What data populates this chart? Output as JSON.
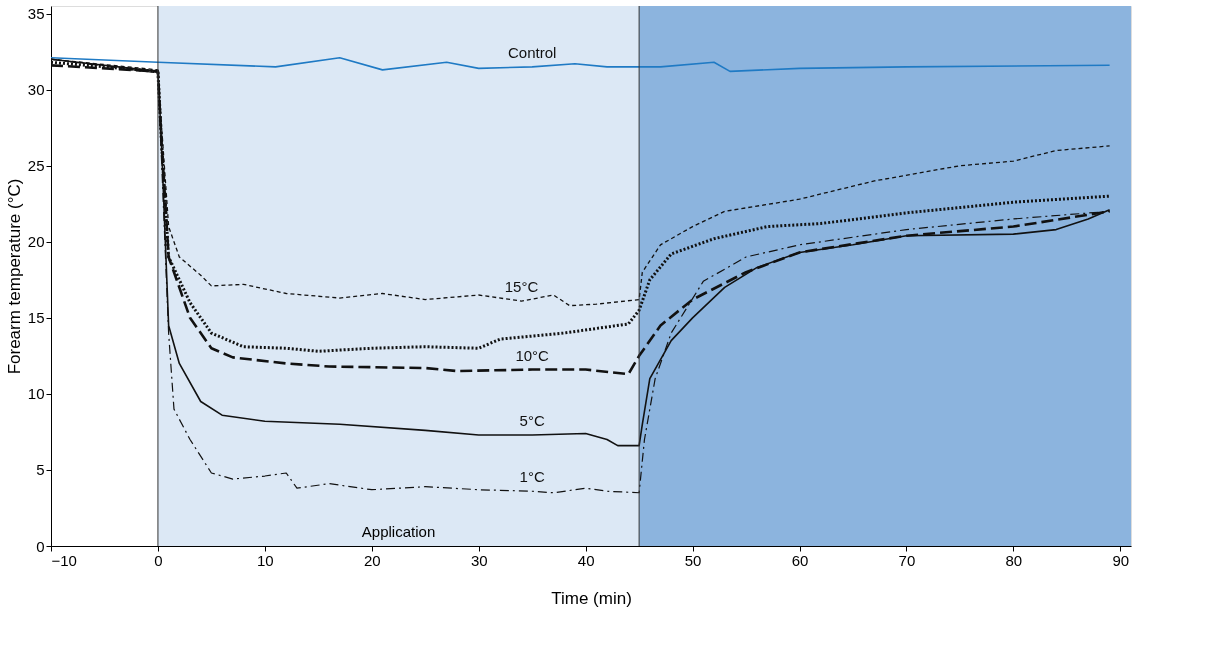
{
  "chart_data": {
    "type": "line",
    "xlabel": "Time (min)",
    "ylabel": "Forearm temperature (°C)",
    "xlim": [
      -10,
      91
    ],
    "xticks": [
      -10,
      0,
      10,
      20,
      30,
      40,
      50,
      60,
      70,
      80,
      90
    ],
    "ylim": [
      0,
      35.5
    ],
    "yticks": [
      0,
      5,
      10,
      15,
      20,
      25,
      30,
      35
    ],
    "grid": false,
    "ref_lines": [
      {
        "axis": "x",
        "value": 0,
        "color": "#333333"
      },
      {
        "axis": "x",
        "value": 45,
        "color": "#333333"
      }
    ],
    "bands": [
      {
        "axis": "x",
        "from": 0,
        "to": 45,
        "label": "Application",
        "color": "#dce8f5"
      },
      {
        "axis": "x",
        "from": 45,
        "to": 91,
        "color": "#8cb4de"
      }
    ],
    "series": [
      {
        "name": "Control",
        "color": "#1f7ac4",
        "line_style": "solid",
        "x": [
          -10,
          0,
          11,
          17,
          21,
          27,
          30,
          35,
          39,
          42,
          47,
          52,
          53.5,
          60,
          70,
          89
        ],
        "values": [
          32.1,
          31.8,
          31.5,
          32.1,
          31.3,
          31.8,
          31.4,
          31.5,
          31.7,
          31.5,
          31.5,
          31.8,
          31.2,
          31.4,
          31.5,
          31.6
        ]
      },
      {
        "name": "15°C",
        "color": "#111111",
        "line_style": "dashed",
        "x": [
          -10,
          0,
          0.3,
          1,
          2,
          4,
          5,
          8,
          12,
          17,
          21,
          25,
          30,
          34,
          37,
          38.5,
          41,
          45,
          45.3,
          47,
          50,
          53,
          60,
          67,
          75,
          80,
          84,
          89
        ],
        "values": [
          32,
          31.3,
          28,
          21,
          19,
          17.8,
          17.1,
          17.2,
          16.6,
          16.3,
          16.6,
          16.2,
          16.5,
          16.1,
          16.5,
          15.8,
          15.9,
          16.2,
          18,
          19.8,
          21,
          22,
          22.8,
          24,
          25,
          25.3,
          26,
          26.3
        ]
      },
      {
        "color": "#111111",
        "line_style": "dotted",
        "x": [
          -10,
          0,
          0.3,
          1,
          3,
          5,
          8,
          12,
          15,
          20,
          25,
          30,
          32,
          38,
          44,
          45,
          46,
          48,
          52,
          57,
          62,
          70,
          80,
          89
        ],
        "values": [
          31.8,
          31.2,
          27,
          19,
          16,
          14,
          13.1,
          13,
          12.8,
          13,
          13.1,
          13,
          13.6,
          14,
          14.6,
          15.5,
          17.5,
          19.2,
          20.2,
          21,
          21.2,
          21.9,
          22.6,
          23
        ]
      },
      {
        "name": "10°C",
        "color": "#111111",
        "line_style": "longdash",
        "x": [
          -10,
          0,
          0.3,
          1,
          3,
          5,
          7,
          12,
          16,
          25,
          28,
          35,
          40,
          44,
          45,
          47,
          50,
          55,
          60,
          70,
          80,
          89
        ],
        "values": [
          31.6,
          31.2,
          27,
          19,
          15,
          13,
          12.4,
          12,
          11.8,
          11.7,
          11.5,
          11.6,
          11.6,
          11.3,
          12.5,
          14.5,
          16.2,
          18,
          19.3,
          20.4,
          21,
          22
        ]
      },
      {
        "name": "5°C",
        "color": "#111111",
        "line_style": "solid",
        "x": [
          -10,
          0,
          0.3,
          1,
          2,
          4,
          6,
          10,
          17,
          25,
          30,
          35,
          40,
          42,
          43,
          45,
          45.3,
          46,
          48,
          50,
          53,
          56,
          60,
          65,
          70,
          80,
          84,
          87,
          89
        ],
        "values": [
          32,
          31.2,
          27,
          14.5,
          12,
          9.5,
          8.6,
          8.2,
          8,
          7.6,
          7.3,
          7.3,
          7.4,
          7,
          6.6,
          6.6,
          8,
          11,
          13.5,
          15,
          17,
          18.3,
          19.3,
          19.8,
          20.4,
          20.5,
          20.8,
          21.5,
          22.1
        ]
      },
      {
        "name": "1°C",
        "color": "#111111",
        "line_style": "dashdot",
        "x": [
          -10,
          0,
          0.3,
          1,
          1.5,
          3,
          5,
          7,
          10,
          12,
          13,
          16,
          20,
          25,
          30,
          35,
          37,
          40,
          42,
          45,
          45.5,
          46.5,
          48,
          51,
          55,
          60,
          70,
          80,
          89
        ],
        "values": [
          32,
          31.1,
          26,
          14,
          9,
          7,
          4.8,
          4.4,
          4.6,
          4.8,
          3.8,
          4.1,
          3.7,
          3.9,
          3.7,
          3.6,
          3.5,
          3.8,
          3.6,
          3.5,
          7,
          11,
          14,
          17.4,
          19,
          19.8,
          20.8,
          21.5,
          22
        ]
      }
    ]
  }
}
